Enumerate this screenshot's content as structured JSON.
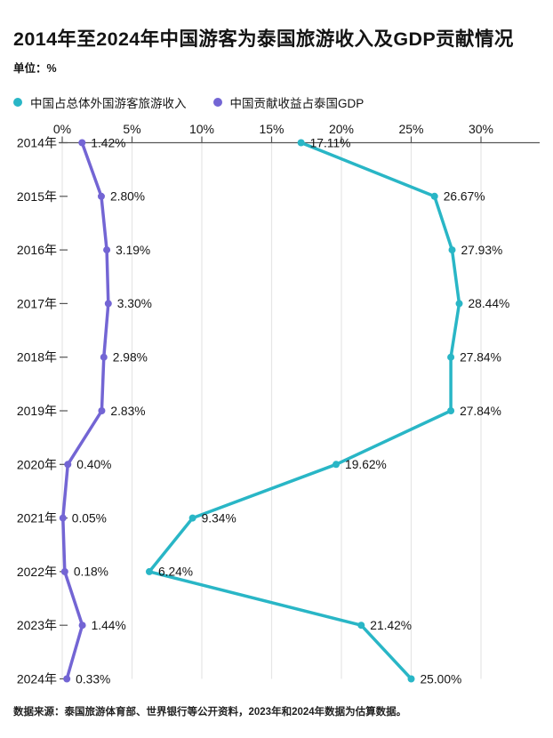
{
  "title": "2014年至2024年中国游客为泰国旅游收入及GDP贡献情况",
  "unit_label": "单位：%",
  "source_note": "数据来源：泰国旅游体育部、世界银行等公开资料，2023年和2024年数据为估算数据。",
  "colors": {
    "revenue": "#29b6c6",
    "gdp": "#7365d4",
    "grid": "#e6e6e6",
    "axis": "#555555",
    "text": "#141414"
  },
  "chart_data": {
    "type": "line",
    "orientation": "years-vertical",
    "categories": [
      "2014年",
      "2015年",
      "2016年",
      "2017年",
      "2018年",
      "2019年",
      "2020年",
      "2021年",
      "2022年",
      "2023年",
      "2024年"
    ],
    "x_ticks": [
      "0%",
      "5%",
      "10%",
      "15%",
      "20%",
      "25%",
      "30%"
    ],
    "x_tick_values": [
      0,
      5,
      10,
      15,
      20,
      25,
      30
    ],
    "xlim": [
      0,
      34
    ],
    "grid": true,
    "legend_position": "top",
    "series": [
      {
        "name": "中国占总体外国游客旅游收入",
        "color_key": "revenue",
        "values": [
          17.11,
          26.67,
          27.93,
          28.44,
          27.84,
          27.84,
          19.62,
          9.34,
          6.24,
          21.42,
          25.0
        ]
      },
      {
        "name": "中国贡献收益占泰国GDP",
        "color_key": "gdp",
        "values": [
          1.42,
          2.8,
          3.19,
          3.3,
          2.98,
          2.83,
          0.4,
          0.05,
          0.18,
          1.44,
          0.33
        ]
      }
    ]
  }
}
